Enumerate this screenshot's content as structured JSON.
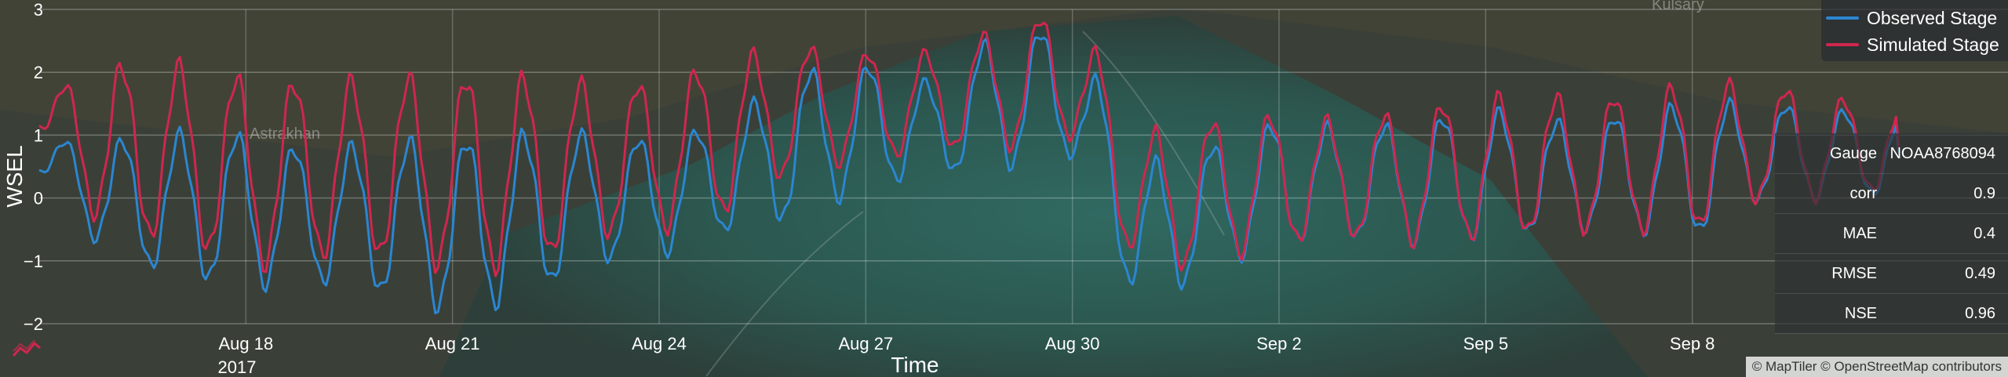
{
  "map": {
    "labels": [
      "Astrakhan",
      "Kulsary"
    ],
    "attribution": "© MapTiler © OpenStreetMap contributors"
  },
  "legend": {
    "observed_label": "Observed Stage",
    "simulated_label": "Simulated Stage"
  },
  "stats": {
    "gauge_label": "Gauge",
    "gauge_value": "NOAA8768094",
    "rows": [
      {
        "key": "corr",
        "value": "0.9"
      },
      {
        "key": "MAE",
        "value": "0.4"
      },
      {
        "key": "RMSE",
        "value": "0.49"
      },
      {
        "key": "NSE",
        "value": "0.96"
      }
    ]
  },
  "icons": {
    "corner": "line-chart-icon"
  },
  "colors": {
    "observed": "#2b86d1",
    "simulated": "#d0264f"
  },
  "chart_data": {
    "type": "line",
    "xlabel": "Time",
    "ylabel": "WSEL",
    "ylim": [
      -2,
      3
    ],
    "xlim": [
      "Aug 15 2017",
      "Sep 11 2017"
    ],
    "yticks": [
      -2,
      -1,
      0,
      1,
      2,
      3
    ],
    "xticks": [
      "Aug 18",
      "Aug 21",
      "Aug 24",
      "Aug 27",
      "Aug 30",
      "Sep 2",
      "Sep 5",
      "Sep 8"
    ],
    "xtick_sublabel": "2017",
    "grid": true,
    "legend_position": "top-right",
    "x": [
      "Aug 15",
      "Aug 16",
      "Aug 17",
      "Aug 18",
      "Aug 19",
      "Aug 20",
      "Aug 21",
      "Aug 22",
      "Aug 23",
      "Aug 24",
      "Aug 25",
      "Aug 26",
      "Aug 27",
      "Aug 28",
      "Aug 29",
      "Aug 30",
      "Aug 31",
      "Sep 1",
      "Sep 2",
      "Sep 3",
      "Sep 4",
      "Sep 5",
      "Sep 6",
      "Sep 7",
      "Sep 8",
      "Sep 9",
      "Sep 10",
      "Sep 11"
    ],
    "series": [
      {
        "name": "Observed Stage",
        "low": [
          0.4,
          -0.9,
          -1.2,
          -1.4,
          -1.3,
          -1.5,
          -1.8,
          -1.6,
          -1.0,
          -0.9,
          -0.5,
          -0.3,
          0.2,
          0.4,
          0.5,
          0.7,
          -1.8,
          -1.1,
          -0.7,
          -0.6,
          -0.7,
          -0.6,
          -0.5,
          -0.5,
          -0.6,
          0.0,
          0.0,
          0.1
        ],
        "high": [
          0.9,
          0.9,
          1.0,
          1.0,
          0.7,
          0.9,
          0.9,
          1.0,
          1.0,
          0.9,
          1.2,
          2.0,
          2.1,
          1.8,
          2.7,
          2.6,
          0.5,
          0.8,
          1.2,
          1.1,
          1.2,
          1.4,
          1.2,
          1.3,
          1.5,
          1.5,
          1.4,
          1.3
        ]
      },
      {
        "name": "Simulated Stage",
        "low": [
          1.1,
          -0.6,
          -0.6,
          -1.1,
          -0.9,
          -0.9,
          -1.1,
          -1.1,
          -0.6,
          -0.5,
          -0.2,
          0.5,
          0.6,
          0.8,
          0.8,
          1.0,
          -1.2,
          -1.0,
          -0.7,
          -0.6,
          -0.7,
          -0.6,
          -0.5,
          -0.5,
          -0.5,
          0.0,
          0.0,
          0.2
        ],
        "high": [
          1.6,
          2.1,
          2.1,
          1.9,
          1.8,
          1.9,
          1.9,
          1.9,
          1.8,
          1.8,
          2.2,
          2.4,
          2.3,
          2.3,
          2.7,
          3.0,
          1.0,
          1.2,
          1.3,
          1.2,
          1.4,
          1.6,
          1.6,
          1.6,
          1.8,
          1.8,
          1.6,
          1.4
        ]
      }
    ]
  }
}
